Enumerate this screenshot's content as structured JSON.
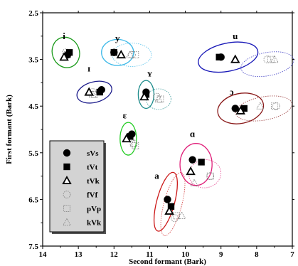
{
  "chart_data": {
    "type": "scatter",
    "xlabel": "Second formant (Bark)",
    "ylabel": "First formant (Bark)",
    "xlim": [
      14,
      7
    ],
    "ylim": [
      7.5,
      2.5
    ],
    "x_reversed": true,
    "y_reversed": true,
    "x_ticks": [
      "14",
      "13",
      "12",
      "11",
      "10",
      "9",
      "8",
      "7"
    ],
    "y_ticks": [
      "2.5",
      "3.5",
      "4.5",
      "5.5",
      "6.5",
      "7.5"
    ],
    "grid": false,
    "legend_placement": "bottom-left",
    "legend": [
      {
        "name": "sVs",
        "marker": "filled-circle"
      },
      {
        "name": "tVt",
        "marker": "filled-square"
      },
      {
        "name": "tVk",
        "marker": "open-triangle"
      },
      {
        "name": "fVf",
        "marker": "dotted-circle"
      },
      {
        "name": "pVp",
        "marker": "dotted-square"
      },
      {
        "name": "kVk",
        "marker": "dotted-triangle"
      }
    ],
    "vowels": [
      {
        "label": "i",
        "color": "#1a9a1a",
        "label_pos": [
          13.4,
          3.0
        ],
        "ellipse": {
          "cx": 13.35,
          "cy": 3.35,
          "rx": 0.38,
          "ry": 0.33,
          "angle": -20
        },
        "points": {
          "sVs": [
            13.3,
            3.4
          ],
          "tVt": [
            13.25,
            3.35
          ],
          "tVk": [
            13.4,
            3.45
          ],
          "fVf": [
            13.35,
            3.35
          ],
          "pVp": [
            13.3,
            3.4
          ],
          "kVk": [
            13.4,
            3.45
          ]
        }
      },
      {
        "label": "y",
        "color": "#3ab8e8",
        "label_pos": [
          11.9,
          3.05
        ],
        "ellipse": {
          "cx": 11.9,
          "cy": 3.35,
          "rx": 0.45,
          "ry": 0.28,
          "angle": 0
        },
        "points": {
          "sVs": [
            12.0,
            3.35
          ],
          "tVt": [
            12.0,
            3.35
          ],
          "tVk": [
            11.8,
            3.4
          ],
          "fVf": [
            11.5,
            3.4
          ],
          "pVp": [
            11.4,
            3.4
          ],
          "kVk": [
            11.55,
            3.4
          ]
        },
        "dotted_ellipse": {
          "cx": 11.5,
          "cy": 3.4,
          "rx": 0.55,
          "ry": 0.25,
          "angle": 0
        }
      },
      {
        "label": "u",
        "color": "#1a1ab8",
        "label_pos": [
          8.6,
          3.0
        ],
        "ellipse": {
          "cx": 8.8,
          "cy": 3.45,
          "rx": 0.85,
          "ry": 0.3,
          "angle": -12
        },
        "points": {
          "sVs": [
            9.0,
            3.45
          ],
          "tVt": [
            9.05,
            3.45
          ],
          "tVk": [
            8.6,
            3.5
          ],
          "fVf": [
            7.7,
            3.5
          ],
          "pVp": [
            7.6,
            3.5
          ],
          "kVk": [
            7.5,
            3.5
          ]
        },
        "dotted_ellipse": {
          "cx": 7.7,
          "cy": 3.6,
          "rx": 0.75,
          "ry": 0.25,
          "angle": -10
        }
      },
      {
        "label": "ɪ",
        "color": "#1a1a8a",
        "label_pos": [
          12.7,
          3.7
        ],
        "ellipse": {
          "cx": 12.55,
          "cy": 4.2,
          "rx": 0.5,
          "ry": 0.22,
          "angle": -15
        },
        "points": {
          "sVs": [
            12.35,
            4.15
          ],
          "tVt": [
            12.4,
            4.2
          ],
          "tVk": [
            12.7,
            4.2
          ],
          "fVf": [
            12.6,
            4.2
          ],
          "pVp": [
            12.55,
            4.25
          ],
          "kVk": [
            12.6,
            4.25
          ]
        }
      },
      {
        "label": "ʏ",
        "color": "#1a8a8a",
        "label_pos": [
          11.0,
          3.8
        ],
        "ellipse": {
          "cx": 11.1,
          "cy": 4.25,
          "rx": 0.22,
          "ry": 0.3,
          "angle": 0
        },
        "points": {
          "sVs": [
            11.1,
            4.2
          ],
          "tVt": [
            11.1,
            4.25
          ],
          "tVk": [
            11.15,
            4.3
          ],
          "fVf": [
            10.8,
            4.3
          ],
          "pVp": [
            10.7,
            4.35
          ],
          "kVk": [
            10.75,
            4.35
          ]
        },
        "dotted_ellipse": {
          "cx": 10.75,
          "cy": 4.35,
          "rx": 0.35,
          "ry": 0.22,
          "angle": 0
        }
      },
      {
        "label": "ɔ",
        "color": "#8a1a1a",
        "label_pos": [
          8.7,
          4.2
        ],
        "ellipse": {
          "cx": 8.45,
          "cy": 4.55,
          "rx": 0.65,
          "ry": 0.32,
          "angle": -12
        },
        "points": {
          "sVs": [
            8.6,
            4.55
          ],
          "tVt": [
            8.35,
            4.55
          ],
          "tVk": [
            8.45,
            4.6
          ],
          "fVf": [
            7.45,
            4.5
          ],
          "pVp": [
            7.5,
            4.5
          ],
          "kVk": [
            7.9,
            4.5
          ]
        },
        "dotted_ellipse": {
          "cx": 7.8,
          "cy": 4.55,
          "rx": 0.8,
          "ry": 0.25,
          "angle": -10
        }
      },
      {
        "label": "ɛ",
        "color": "#22cc22",
        "label_pos": [
          11.7,
          4.7
        ],
        "ellipse": {
          "cx": 11.6,
          "cy": 5.2,
          "rx": 0.23,
          "ry": 0.35,
          "angle": 0
        },
        "points": {
          "sVs": [
            11.5,
            5.1
          ],
          "tVt": [
            11.55,
            5.15
          ],
          "tVk": [
            11.65,
            5.2
          ],
          "fVf": [
            11.45,
            5.3
          ],
          "pVp": [
            11.4,
            5.35
          ],
          "kVk": [
            11.45,
            5.3
          ]
        }
      },
      {
        "label": "ɑ",
        "color": "#e0207a",
        "label_pos": [
          9.8,
          5.1
        ],
        "ellipse": {
          "cx": 9.7,
          "cy": 5.75,
          "rx": 0.45,
          "ry": 0.45,
          "angle": 0
        },
        "points": {
          "sVs": [
            9.8,
            5.65
          ],
          "tVt": [
            9.55,
            5.7
          ],
          "tVk": [
            9.85,
            5.9
          ],
          "fVf": [
            9.3,
            6.0
          ],
          "pVp": [
            9.3,
            6.0
          ],
          "kVk": [
            9.75,
            6.15
          ]
        },
        "dotted_ellipse": {
          "cx": 9.45,
          "cy": 5.95,
          "rx": 0.45,
          "ry": 0.3,
          "angle": -10
        }
      },
      {
        "label": "a",
        "color": "#cc1a1a",
        "label_pos": [
          10.8,
          6.0
        ],
        "ellipse": {
          "cx": 10.55,
          "cy": 6.55,
          "rx": 0.25,
          "ry": 0.65,
          "angle": 15
        },
        "points": {
          "sVs": [
            10.5,
            6.5
          ],
          "tVt": [
            10.4,
            6.65
          ],
          "tVk": [
            10.45,
            6.75
          ],
          "fVf": [
            10.3,
            6.9
          ],
          "pVp": [
            10.25,
            6.85
          ],
          "kVk": [
            10.1,
            6.85
          ]
        },
        "dotted_ellipse": {
          "cx": 10.35,
          "cy": 6.6,
          "rx": 0.25,
          "ry": 0.7,
          "angle": 15
        }
      }
    ]
  }
}
